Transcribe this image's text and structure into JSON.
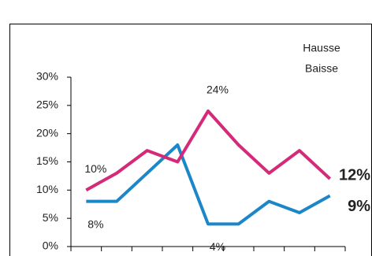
{
  "chart_data": {
    "type": "line",
    "categories": [
      null,
      null,
      null,
      null,
      null,
      null,
      null,
      null,
      null
    ],
    "series": [
      {
        "name": "Hausse",
        "color": "#1b87c9",
        "values": [
          8,
          8,
          13,
          18,
          4,
          4,
          8,
          6,
          9
        ],
        "value_labels": [
          "8%",
          null,
          null,
          null,
          "4%",
          null,
          null,
          null,
          "9%"
        ]
      },
      {
        "name": "Baisse",
        "color": "#d52a78",
        "values": [
          10,
          13,
          17,
          15,
          24,
          18,
          13,
          17,
          12
        ],
        "value_labels": [
          "10%",
          null,
          null,
          null,
          "24%",
          null,
          null,
          null,
          "12%"
        ]
      }
    ],
    "ylim": [
      0,
      30
    ],
    "yticks": [
      {
        "value": 0,
        "label": "0%"
      },
      {
        "value": 5,
        "label": "5%"
      },
      {
        "value": 10,
        "label": "10%"
      },
      {
        "value": 15,
        "label": "15%"
      },
      {
        "value": 20,
        "label": "20%"
      },
      {
        "value": 25,
        "label": "25%"
      },
      {
        "value": 30,
        "label": "30%"
      }
    ]
  }
}
